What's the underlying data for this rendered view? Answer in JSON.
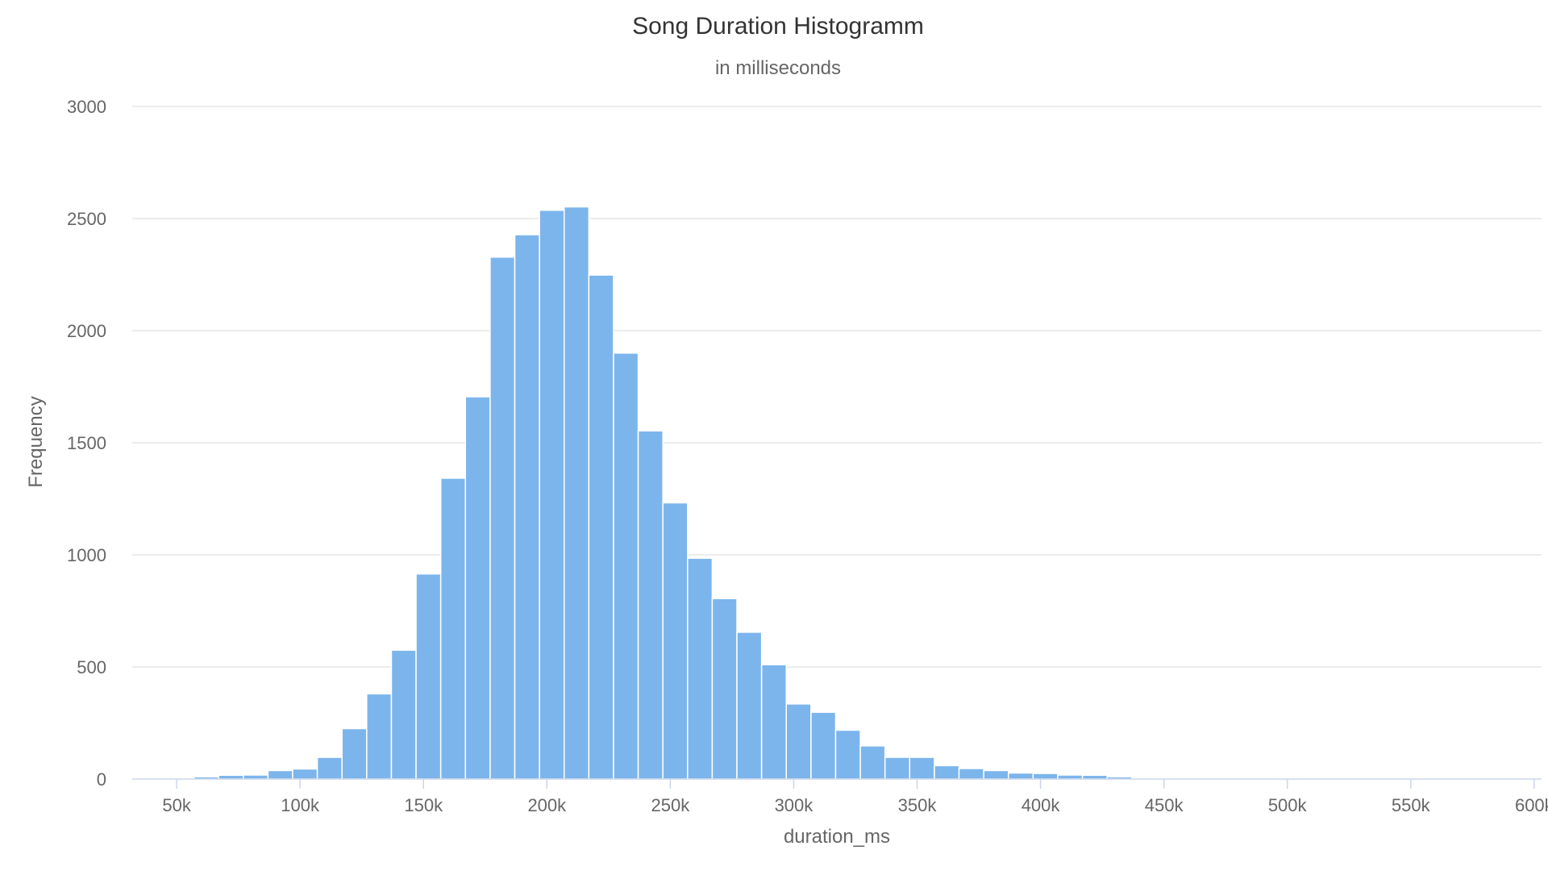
{
  "chart_data": {
    "type": "bar",
    "title": "Song Duration Histogramm",
    "subtitle": "in milliseconds",
    "xlabel": "duration_ms",
    "ylabel": "Frequency",
    "xlim": [
      32000,
      603000
    ],
    "ylim": [
      0,
      3000
    ],
    "y_ticks": [
      0,
      500,
      1000,
      1500,
      2000,
      2500,
      3000
    ],
    "x_ticks": [
      50000,
      100000,
      150000,
      200000,
      250000,
      300000,
      350000,
      400000,
      450000,
      500000,
      550000,
      600000
    ],
    "x_tick_labels": [
      "50k",
      "100k",
      "150k",
      "200k",
      "250k",
      "300k",
      "350k",
      "400k",
      "450k",
      "500k",
      "550k",
      "600k"
    ],
    "bin_start": 57000,
    "bin_width": 10000,
    "values": [
      10,
      17,
      18,
      38,
      45,
      97,
      225,
      380,
      575,
      915,
      1342,
      1705,
      2328,
      2428,
      2537,
      2552,
      2248,
      1900,
      1553,
      1232,
      985,
      805,
      655,
      510,
      335,
      298,
      218,
      148,
      97,
      97,
      60,
      47,
      38,
      27,
      25,
      18,
      17,
      10,
      3,
      2,
      2,
      1,
      1,
      1,
      1,
      1,
      1,
      1,
      1,
      1,
      1,
      1,
      1,
      1,
      1
    ],
    "grid": true,
    "legend": "none",
    "color": "#7cb5ec"
  }
}
